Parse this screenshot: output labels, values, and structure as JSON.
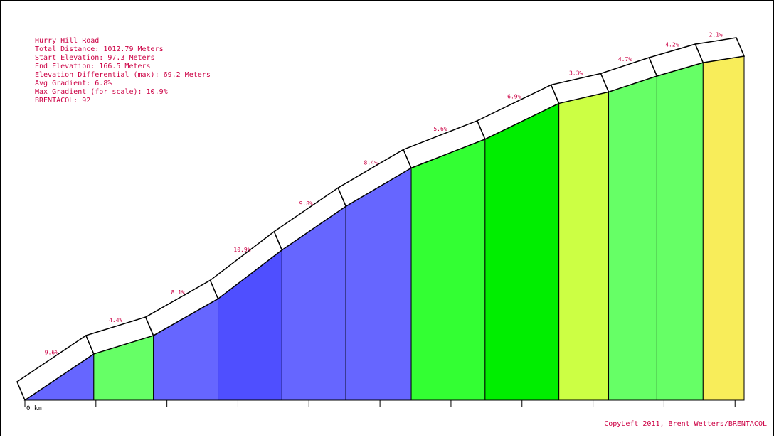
{
  "info": {
    "title": "Hurry Hill Road",
    "total_distance": "Total Distance: 1012.79 Meters",
    "start_elevation": "Start Elevation: 97.3 Meters",
    "end_elevation": "End Elevation: 166.5 Meters",
    "elevation_differential": "Elevation Differential (max): 69.2 Meters",
    "avg_gradient": "Avg Gradient: 6.8%",
    "max_gradient": "Max Gradient (for scale): 10.9%",
    "brentacol": "BRENTACOL: 92"
  },
  "x_label_start": "0 km",
  "copyright": "CopyLeft 2011, Brent Wetters/BRENTACOL",
  "chart_data": {
    "type": "area",
    "title": "Hurry Hill Road",
    "xlabel": "",
    "ylabel": "",
    "x_unit": "m",
    "y_unit": "m",
    "xlim": [
      0,
      1012.79
    ],
    "start_elevation": 97.3,
    "end_elevation": 166.5,
    "segments": [
      {
        "start": 0,
        "end": 97,
        "elev_start": 97.3,
        "elev_end": 106.6,
        "gradient_label": "9.6%",
        "color": "#6666ff"
      },
      {
        "start": 97,
        "end": 181,
        "elev_start": 106.6,
        "elev_end": 110.3,
        "gradient_label": "4.4%",
        "color": "#66ff66"
      },
      {
        "start": 181,
        "end": 272,
        "elev_start": 110.3,
        "elev_end": 117.7,
        "gradient_label": "8.1%",
        "color": "#6666ff"
      },
      {
        "start": 272,
        "end": 362,
        "elev_start": 117.7,
        "elev_end": 127.5,
        "gradient_label": "10.9%",
        "color": "#4f4fff"
      },
      {
        "start": 362,
        "end": 452,
        "elev_start": 127.5,
        "elev_end": 136.3,
        "gradient_label": "9.8%",
        "color": "#6666ff"
      },
      {
        "start": 452,
        "end": 544,
        "elev_start": 136.3,
        "elev_end": 144.0,
        "gradient_label": "8.4%",
        "color": "#6666ff"
      },
      {
        "start": 544,
        "end": 648,
        "elev_start": 144.0,
        "elev_end": 149.8,
        "gradient_label": "5.6%",
        "color": "#33ff33"
      },
      {
        "start": 648,
        "end": 752,
        "elev_start": 149.8,
        "elev_end": 157.0,
        "gradient_label": "6.9%",
        "color": "#00ee00"
      },
      {
        "start": 752,
        "end": 822,
        "elev_start": 157.0,
        "elev_end": 159.3,
        "gradient_label": "3.3%",
        "color": "#ccff44"
      },
      {
        "start": 822,
        "end": 890,
        "elev_start": 159.3,
        "elev_end": 162.5,
        "gradient_label": "4.7%",
        "color": "#66ff66"
      },
      {
        "start": 890,
        "end": 955,
        "elev_start": 162.5,
        "elev_end": 165.2,
        "gradient_label": "4.2%",
        "color": "#66ff66"
      },
      {
        "start": 955,
        "end": 1012.79,
        "elev_start": 165.2,
        "elev_end": 166.5,
        "gradient_label": "2.1%",
        "color": "#f8ed5a"
      }
    ],
    "x_ticks_m": [
      100,
      200,
      300,
      400,
      500,
      600,
      700,
      800,
      900,
      1000
    ]
  }
}
